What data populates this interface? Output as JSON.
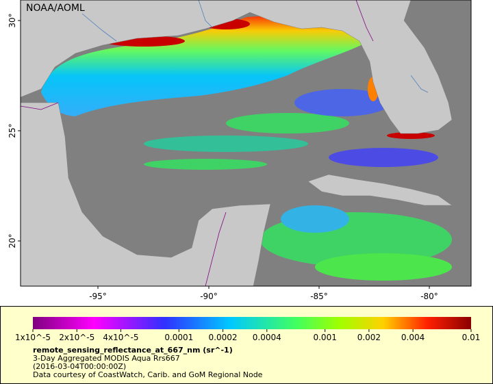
{
  "map": {
    "watermark": "NOAA/AOML",
    "latitude_labels": [
      "30°",
      "25°",
      "20°"
    ],
    "longitude_labels": [
      "-95°",
      "-90°",
      "-85°",
      "-80°"
    ]
  },
  "legend": {
    "colorbar_ticks": [
      {
        "value": 1e-05,
        "label": "1x10^-5"
      },
      {
        "value": 2e-05,
        "label": "2x10^-5"
      },
      {
        "value": 4e-05,
        "label": "4x10^-5"
      },
      0.0001,
      0.0002,
      0.0004,
      0.001,
      0.002,
      0.004,
      0.01
    ],
    "variable": "remote_sensing_reflectance_at_667_nm (sr^-1)",
    "description": "3-Day Aggregated MODIS Aqua Rrs667",
    "time": "(2016-03-04T00:00:00Z)",
    "credit": "Data courtesy of CoastWatch, Carib. and GoM Regional Node"
  }
}
